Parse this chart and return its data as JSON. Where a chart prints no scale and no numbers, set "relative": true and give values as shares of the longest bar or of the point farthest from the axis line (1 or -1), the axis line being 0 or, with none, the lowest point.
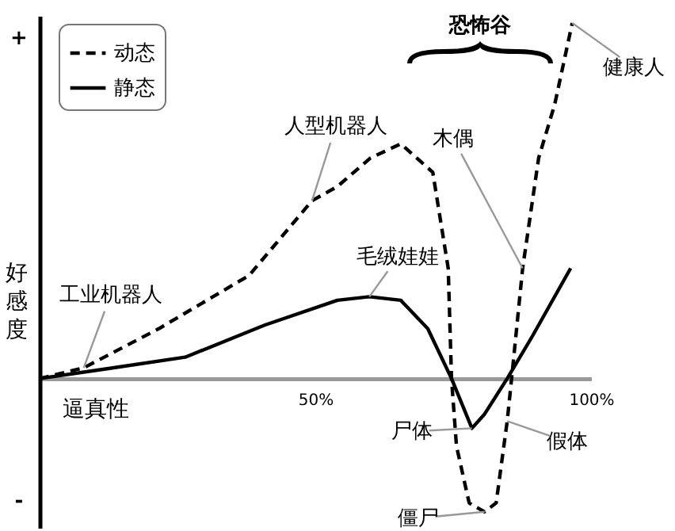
{
  "chart_data": {
    "type": "line",
    "relative": true,
    "xlabel": "逼真性",
    "ylabel": "好感度",
    "xlim": [
      0,
      100
    ],
    "xticks": [
      {
        "value": 50,
        "label": "50%"
      },
      {
        "value": 100,
        "label": "100%"
      }
    ],
    "legend": "top left",
    "marker": "none",
    "series": [
      {
        "name": "动态",
        "color": "#000000",
        "line_style": "dashed",
        "x": [
          0,
          8,
          21.6,
          38,
          49.4,
          54,
          60,
          65.5,
          71.3,
          74.1,
          74.7,
          75.6,
          77.9,
          80.7,
          82.8,
          84.8,
          85.6,
          87.6,
          90.5,
          93.4,
          96.6
        ],
        "values": [
          0,
          0.03,
          0.14,
          0.29,
          0.5,
          0.54,
          0.62,
          0.66,
          0.58,
          0.31,
          0,
          -0.19,
          -0.35,
          -0.375,
          -0.35,
          -0.12,
          0,
          0.31,
          0.62,
          0.77,
          1.0
        ]
      },
      {
        "name": "静态",
        "color": "#000000",
        "line_style": "solid",
        "x": [
          0,
          12,
          26.4,
          40.8,
          54,
          59.8,
          65.5,
          70.4,
          74.7,
          78.4,
          80.7,
          84.8,
          89.4,
          96.3
        ],
        "values": [
          0,
          0.027,
          0.06,
          0.15,
          0.22,
          0.23,
          0.22,
          0.14,
          0,
          -0.14,
          -0.1,
          0,
          0.12,
          0.31
        ]
      }
    ],
    "annotations": [
      {
        "text": "人型机器人",
        "x": 49.4,
        "y": 0.5
      },
      {
        "text": "毛绒娃娃",
        "x": 59.8,
        "y": 0.23
      },
      {
        "text": "工业机器人",
        "x": 8,
        "y": 0.03
      },
      {
        "text": "木偶",
        "x": 87.6,
        "y": 0.31
      },
      {
        "text": "健康人",
        "x": 96.6,
        "y": 1.0
      },
      {
        "text": "尸体",
        "x": 78.4,
        "y": -0.14
      },
      {
        "text": "假体",
        "x": 84.8,
        "y": -0.12
      },
      {
        "text": "僵尸",
        "x": 80.7,
        "y": -0.375
      },
      "+",
      "-",
      "恐怖谷"
    ]
  }
}
